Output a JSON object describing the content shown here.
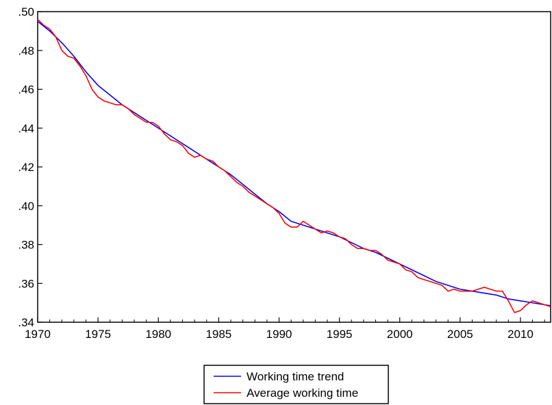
{
  "chart_data": {
    "type": "line",
    "title": "",
    "xlabel": "",
    "ylabel": "",
    "xlim": [
      1970,
      2012.5
    ],
    "ylim": [
      0.34,
      0.5
    ],
    "x_ticks": [
      1970,
      1975,
      1980,
      1985,
      1990,
      1995,
      2000,
      2005,
      2010
    ],
    "x_tick_labels": [
      "1970",
      "1975",
      "1980",
      "1985",
      "1990",
      "1995",
      "2000",
      "2005",
      "2010"
    ],
    "y_ticks": [
      0.34,
      0.36,
      0.38,
      0.4,
      0.42,
      0.44,
      0.46,
      0.48,
      0.5
    ],
    "y_tick_labels": [
      ".34",
      ".36",
      ".38",
      ".40",
      ".42",
      ".44",
      ".46",
      ".48",
      ".50"
    ],
    "grid": false,
    "legend_position": "bottom",
    "series": [
      {
        "name": "Working time trend",
        "color": "#0000ff",
        "points": [
          [
            1970,
            0.495
          ],
          [
            1971,
            0.49
          ],
          [
            1972,
            0.484
          ],
          [
            1973,
            0.477
          ],
          [
            1974,
            0.469
          ],
          [
            1975,
            0.462
          ],
          [
            1976,
            0.457
          ],
          [
            1977,
            0.452
          ],
          [
            1978,
            0.448
          ],
          [
            1979,
            0.444
          ],
          [
            1980,
            0.44
          ],
          [
            1981,
            0.436
          ],
          [
            1982,
            0.432
          ],
          [
            1983,
            0.428
          ],
          [
            1984,
            0.424
          ],
          [
            1985,
            0.42
          ],
          [
            1986,
            0.416
          ],
          [
            1987,
            0.411
          ],
          [
            1988,
            0.406
          ],
          [
            1989,
            0.401
          ],
          [
            1990,
            0.397
          ],
          [
            1991,
            0.392
          ],
          [
            1992,
            0.39
          ],
          [
            1993,
            0.388
          ],
          [
            1994,
            0.386
          ],
          [
            1995,
            0.384
          ],
          [
            1996,
            0.381
          ],
          [
            1997,
            0.378
          ],
          [
            1998,
            0.376
          ],
          [
            1999,
            0.373
          ],
          [
            2000,
            0.37
          ],
          [
            2001,
            0.367
          ],
          [
            2002,
            0.364
          ],
          [
            2003,
            0.361
          ],
          [
            2004,
            0.359
          ],
          [
            2005,
            0.357
          ],
          [
            2006,
            0.356
          ],
          [
            2007,
            0.355
          ],
          [
            2008,
            0.354
          ],
          [
            2009,
            0.352
          ],
          [
            2010,
            0.351
          ],
          [
            2011,
            0.35
          ],
          [
            2012,
            0.349
          ],
          [
            2012.5,
            0.3485
          ]
        ]
      },
      {
        "name": "Average working time",
        "color": "#ff0000",
        "points": [
          [
            1970,
            0.496
          ],
          [
            1970.5,
            0.493
          ],
          [
            1971,
            0.491
          ],
          [
            1971.5,
            0.487
          ],
          [
            1972,
            0.48
          ],
          [
            1972.5,
            0.477
          ],
          [
            1973,
            0.476
          ],
          [
            1973.5,
            0.472
          ],
          [
            1974,
            0.467
          ],
          [
            1974.5,
            0.46
          ],
          [
            1975,
            0.456
          ],
          [
            1975.5,
            0.454
          ],
          [
            1976,
            0.453
          ],
          [
            1976.5,
            0.452
          ],
          [
            1977,
            0.452
          ],
          [
            1977.5,
            0.45
          ],
          [
            1978,
            0.447
          ],
          [
            1978.5,
            0.445
          ],
          [
            1979,
            0.443
          ],
          [
            1979.5,
            0.443
          ],
          [
            1980,
            0.441
          ],
          [
            1980.5,
            0.437
          ],
          [
            1981,
            0.434
          ],
          [
            1981.5,
            0.433
          ],
          [
            1982,
            0.431
          ],
          [
            1982.5,
            0.427
          ],
          [
            1983,
            0.425
          ],
          [
            1983.5,
            0.426
          ],
          [
            1984,
            0.424
          ],
          [
            1984.5,
            0.423
          ],
          [
            1985,
            0.42
          ],
          [
            1985.5,
            0.418
          ],
          [
            1986,
            0.415
          ],
          [
            1986.5,
            0.412
          ],
          [
            1987,
            0.41
          ],
          [
            1987.5,
            0.407
          ],
          [
            1988,
            0.405
          ],
          [
            1988.5,
            0.403
          ],
          [
            1989,
            0.401
          ],
          [
            1989.5,
            0.399
          ],
          [
            1990,
            0.396
          ],
          [
            1990.5,
            0.391
          ],
          [
            1991,
            0.389
          ],
          [
            1991.5,
            0.389
          ],
          [
            1992,
            0.392
          ],
          [
            1992.5,
            0.39
          ],
          [
            1993,
            0.388
          ],
          [
            1993.5,
            0.386
          ],
          [
            1994,
            0.387
          ],
          [
            1994.5,
            0.386
          ],
          [
            1995,
            0.384
          ],
          [
            1995.5,
            0.383
          ],
          [
            1996,
            0.38
          ],
          [
            1996.5,
            0.378
          ],
          [
            1997,
            0.378
          ],
          [
            1997.5,
            0.377
          ],
          [
            1998,
            0.377
          ],
          [
            1998.5,
            0.375
          ],
          [
            1999,
            0.372
          ],
          [
            1999.5,
            0.371
          ],
          [
            2000,
            0.37
          ],
          [
            2000.5,
            0.367
          ],
          [
            2001,
            0.366
          ],
          [
            2001.5,
            0.363
          ],
          [
            2002,
            0.362
          ],
          [
            2002.5,
            0.361
          ],
          [
            2003,
            0.36
          ],
          [
            2003.5,
            0.359
          ],
          [
            2004,
            0.356
          ],
          [
            2004.5,
            0.357
          ],
          [
            2005,
            0.356
          ],
          [
            2005.5,
            0.356
          ],
          [
            2006,
            0.356
          ],
          [
            2006.5,
            0.357
          ],
          [
            2007,
            0.358
          ],
          [
            2007.5,
            0.357
          ],
          [
            2008,
            0.356
          ],
          [
            2008.5,
            0.356
          ],
          [
            2009,
            0.351
          ],
          [
            2009.5,
            0.345
          ],
          [
            2010,
            0.346
          ],
          [
            2010.5,
            0.349
          ],
          [
            2011,
            0.351
          ],
          [
            2011.5,
            0.35
          ],
          [
            2012,
            0.349
          ],
          [
            2012.5,
            0.348
          ]
        ]
      }
    ]
  }
}
